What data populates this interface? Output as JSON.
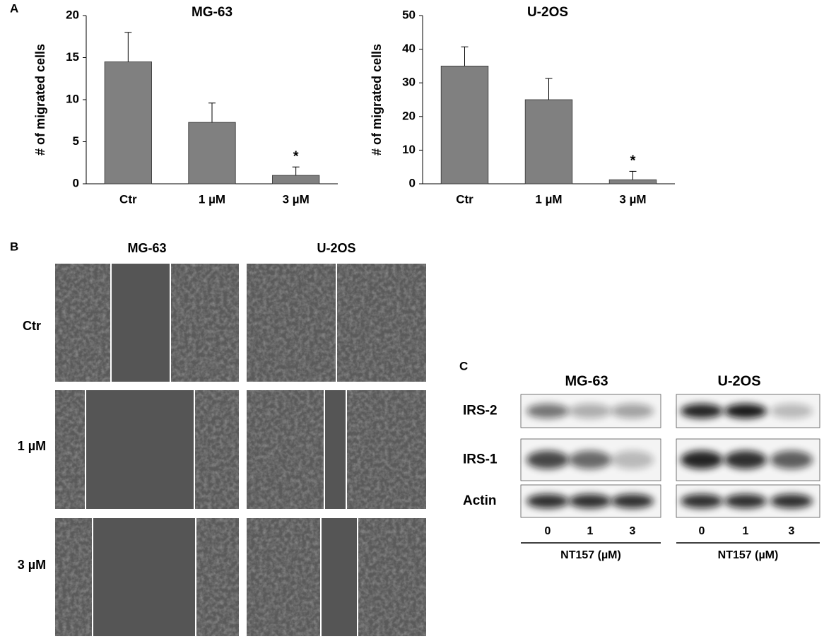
{
  "panels": {
    "a": "A",
    "b": "B",
    "c": "C"
  },
  "chart_data": [
    {
      "type": "bar",
      "title": "MG-63",
      "y_label": "# of migrated cells",
      "categories": [
        "Ctr",
        "1 µM",
        "3 µM"
      ],
      "values": [
        14.5,
        7.3,
        1.0
      ],
      "errors": [
        3.5,
        2.3,
        1.0
      ],
      "annotations": [
        null,
        null,
        "*"
      ],
      "color": "#808080",
      "ylim": [
        0,
        20
      ],
      "yticks": [
        0,
        5,
        10,
        15,
        20
      ]
    },
    {
      "type": "bar",
      "title": "U-2OS",
      "y_label": "# of migrated cells",
      "categories": [
        "Ctr",
        "1 µM",
        "3 µM"
      ],
      "values": [
        35,
        25,
        1.2
      ],
      "errors": [
        5.7,
        6.3,
        2.5
      ],
      "annotations": [
        null,
        null,
        "*"
      ],
      "color": "#808080",
      "ylim": [
        0,
        50
      ],
      "yticks": [
        0,
        10,
        20,
        30,
        40,
        50
      ]
    }
  ],
  "migration": {
    "columns": [
      "MG-63",
      "U-2OS"
    ],
    "rows": [
      "Ctr",
      "1 µM",
      "3 µM"
    ]
  },
  "western": {
    "groups": [
      "MG-63",
      "U-2OS"
    ],
    "rows": [
      "IRS-2",
      "IRS-1",
      "Actin"
    ],
    "doses": [
      "0",
      "1",
      "3"
    ],
    "dose_label": "NT157 (µM)"
  }
}
